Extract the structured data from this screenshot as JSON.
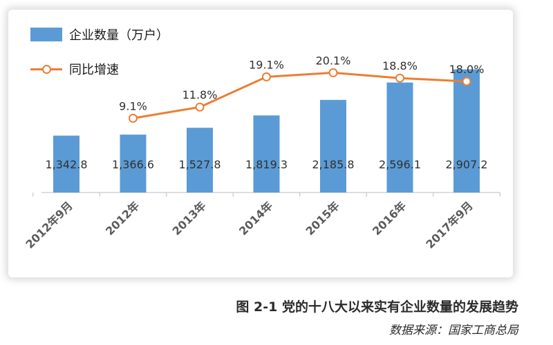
{
  "chart_data": {
    "type": "bar",
    "categories": [
      "2012年9月",
      "2012年",
      "2013年",
      "2014年",
      "2015年",
      "2016年",
      "2017年9月"
    ],
    "series": [
      {
        "name": "企业数量（万户）",
        "type": "bar",
        "values": [
          1342.8,
          1366.6,
          1527.8,
          1819.3,
          2185.8,
          2596.1,
          2907.2
        ],
        "labels": [
          "1,342.8",
          "1,366.6",
          "1,527.8",
          "1,819.3",
          "2,185.8",
          "2,596.1",
          "2,907.2"
        ],
        "color": "#5B9BD5"
      },
      {
        "name": "同比增速",
        "type": "line",
        "values": [
          null,
          9.1,
          11.8,
          19.1,
          20.1,
          18.8,
          18.0
        ],
        "labels": [
          "",
          "9.1%",
          "11.8%",
          "19.1%",
          "20.1%",
          "18.8%",
          "18.0%"
        ],
        "color": "#ED7D31"
      }
    ],
    "legend": "top-left",
    "grid": false,
    "ylim_bar": [
      0,
      3000
    ],
    "ylim_line": [
      0,
      25
    ]
  },
  "caption": {
    "figure": "图 2-1",
    "title": "党的十八大以来实有企业数量的发展趋势"
  },
  "source": "数据来源：国家工商总局"
}
